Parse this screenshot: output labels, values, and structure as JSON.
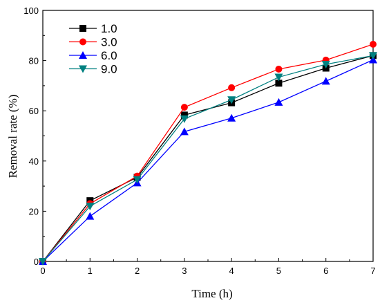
{
  "chart_data": {
    "type": "line",
    "xlabel": "Time (h)",
    "ylabel": "Removal rate (%)",
    "xlim": [
      0,
      7
    ],
    "ylim": [
      0,
      100
    ],
    "xticks": [
      "0",
      "1",
      "2",
      "3",
      "4",
      "5",
      "6",
      "7"
    ],
    "yticks": [
      "0",
      "20",
      "40",
      "60",
      "80",
      "100"
    ],
    "grid": false,
    "legend_position": "top-left",
    "x": [
      0,
      1,
      2,
      3,
      4,
      5,
      6,
      7
    ],
    "series": [
      {
        "name": "1.0",
        "color": "#000000",
        "marker": "square",
        "values": [
          0,
          24.2,
          33.5,
          58.3,
          63.2,
          71.0,
          77.0,
          82.0
        ]
      },
      {
        "name": "3.0",
        "color": "#ff0000",
        "marker": "circle",
        "values": [
          0,
          23.0,
          34.0,
          61.4,
          69.2,
          76.6,
          80.2,
          86.5
        ]
      },
      {
        "name": "6.0",
        "color": "#0000ff",
        "marker": "triangle-up",
        "values": [
          0,
          18.0,
          31.3,
          51.7,
          57.1,
          63.4,
          71.8,
          80.3
        ]
      },
      {
        "name": "9.0",
        "color": "#008080",
        "marker": "triangle-down",
        "values": [
          0,
          22.0,
          32.6,
          56.8,
          64.4,
          73.4,
          78.5,
          82.0
        ]
      }
    ]
  }
}
